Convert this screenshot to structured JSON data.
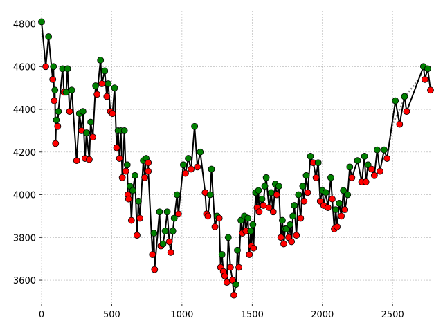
{
  "chart_data": {
    "type": "line",
    "title": "",
    "xlabel": "",
    "ylabel": "",
    "xlim": [
      0,
      2780
    ],
    "ylim": [
      3490,
      4860
    ],
    "x_ticks": [
      0,
      500,
      1000,
      1500,
      2000,
      2500
    ],
    "y_ticks": [
      3600,
      3800,
      4000,
      4200,
      4400,
      4600,
      4800
    ],
    "x_tick_labels": [
      "0",
      "500",
      "1000",
      "1500",
      "2000",
      "2500"
    ],
    "y_tick_labels": [
      "3600",
      "3800",
      "4000",
      "4200",
      "4400",
      "4600",
      "4800"
    ],
    "grid": true,
    "legend": "none",
    "colors": {
      "line": "#000000",
      "trend": "#7f7f7f",
      "high_marker": "#008000",
      "low_marker": "#ff0000",
      "grid": "#b0b0b0"
    },
    "series": [
      {
        "values": [
          [
            0,
            4810
          ],
          [
            30,
            4600
          ],
          [
            50,
            4740
          ],
          [
            80,
            4540
          ],
          [
            85,
            4600
          ],
          [
            90,
            4440
          ],
          [
            95,
            4490
          ],
          [
            100,
            4240
          ],
          [
            105,
            4350
          ],
          [
            115,
            4320
          ],
          [
            120,
            4390
          ],
          [
            150,
            4590
          ],
          [
            160,
            4480
          ],
          [
            175,
            4480
          ],
          [
            185,
            4590
          ],
          [
            200,
            4390
          ],
          [
            215,
            4490
          ],
          [
            250,
            4160
          ],
          [
            270,
            4380
          ],
          [
            285,
            4300
          ],
          [
            295,
            4390
          ],
          [
            310,
            4170
          ],
          [
            320,
            4290
          ],
          [
            340,
            4165
          ],
          [
            350,
            4340
          ],
          [
            365,
            4270
          ],
          [
            385,
            4510
          ],
          [
            395,
            4470
          ],
          [
            420,
            4630
          ],
          [
            430,
            4520
          ],
          [
            450,
            4580
          ],
          [
            465,
            4460
          ],
          [
            475,
            4520
          ],
          [
            490,
            4390
          ],
          [
            505,
            4380
          ],
          [
            520,
            4500
          ],
          [
            535,
            4220
          ],
          [
            545,
            4300
          ],
          [
            555,
            4170
          ],
          [
            565,
            4300
          ],
          [
            575,
            4080
          ],
          [
            590,
            4300
          ],
          [
            600,
            4110
          ],
          [
            610,
            4140
          ],
          [
            615,
            4000
          ],
          [
            620,
            3980
          ],
          [
            630,
            4040
          ],
          [
            640,
            3880
          ],
          [
            650,
            4020
          ],
          [
            665,
            4090
          ],
          [
            680,
            3810
          ],
          [
            690,
            3970
          ],
          [
            700,
            3890
          ],
          [
            725,
            4160
          ],
          [
            735,
            4080
          ],
          [
            745,
            4170
          ],
          [
            760,
            4150
          ],
          [
            760,
            4110
          ],
          [
            790,
            3720
          ],
          [
            800,
            3820
          ],
          [
            805,
            3650
          ],
          [
            840,
            3920
          ],
          [
            850,
            3760
          ],
          [
            865,
            3770
          ],
          [
            880,
            3830
          ],
          [
            895,
            3920
          ],
          [
            910,
            3780
          ],
          [
            920,
            3730
          ],
          [
            935,
            3830
          ],
          [
            945,
            3890
          ],
          [
            965,
            4000
          ],
          [
            975,
            3910
          ],
          [
            1010,
            4140
          ],
          [
            1025,
            4100
          ],
          [
            1045,
            4170
          ],
          [
            1065,
            4120
          ],
          [
            1090,
            4320
          ],
          [
            1110,
            4130
          ],
          [
            1130,
            4200
          ],
          [
            1165,
            4010
          ],
          [
            1175,
            3910
          ],
          [
            1185,
            3900
          ],
          [
            1200,
            4000
          ],
          [
            1210,
            4120
          ],
          [
            1235,
            3850
          ],
          [
            1250,
            3900
          ],
          [
            1265,
            3890
          ],
          [
            1275,
            3660
          ],
          [
            1285,
            3720
          ],
          [
            1295,
            3640
          ],
          [
            1305,
            3620
          ],
          [
            1320,
            3590
          ],
          [
            1330,
            3800
          ],
          [
            1345,
            3660
          ],
          [
            1360,
            3600
          ],
          [
            1370,
            3530
          ],
          [
            1385,
            3580
          ],
          [
            1395,
            3740
          ],
          [
            1405,
            3660
          ],
          [
            1420,
            3880
          ],
          [
            1430,
            3820
          ],
          [
            1445,
            3900
          ],
          [
            1455,
            3830
          ],
          [
            1470,
            3890
          ],
          [
            1480,
            3720
          ],
          [
            1490,
            3830
          ],
          [
            1495,
            3760
          ],
          [
            1505,
            3860
          ],
          [
            1510,
            3750
          ],
          [
            1525,
            4010
          ],
          [
            1535,
            3940
          ],
          [
            1545,
            4020
          ],
          [
            1550,
            3920
          ],
          [
            1570,
            3980
          ],
          [
            1580,
            3950
          ],
          [
            1590,
            4040
          ],
          [
            1600,
            4080
          ],
          [
            1620,
            3940
          ],
          [
            1635,
            4010
          ],
          [
            1650,
            3920
          ],
          [
            1665,
            4050
          ],
          [
            1675,
            4000
          ],
          [
            1690,
            4040
          ],
          [
            1705,
            3800
          ],
          [
            1715,
            3880
          ],
          [
            1725,
            3770
          ],
          [
            1735,
            3840
          ],
          [
            1745,
            3840
          ],
          [
            1760,
            3800
          ],
          [
            1770,
            3860
          ],
          [
            1780,
            3780
          ],
          [
            1790,
            3900
          ],
          [
            1800,
            3950
          ],
          [
            1815,
            3810
          ],
          [
            1830,
            4000
          ],
          [
            1845,
            3890
          ],
          [
            1860,
            4040
          ],
          [
            1870,
            3970
          ],
          [
            1885,
            4090
          ],
          [
            1895,
            4010
          ],
          [
            1915,
            4180
          ],
          [
            1935,
            4150
          ],
          [
            1955,
            4080
          ],
          [
            1970,
            4150
          ],
          [
            1985,
            3970
          ],
          [
            2000,
            4020
          ],
          [
            2010,
            3950
          ],
          [
            2025,
            4010
          ],
          [
            2040,
            3940
          ],
          [
            2060,
            4080
          ],
          [
            2070,
            3980
          ],
          [
            2085,
            3840
          ],
          [
            2095,
            3930
          ],
          [
            2105,
            3850
          ],
          [
            2120,
            3960
          ],
          [
            2135,
            3900
          ],
          [
            2150,
            4020
          ],
          [
            2160,
            3930
          ],
          [
            2180,
            4000
          ],
          [
            2195,
            4130
          ],
          [
            2210,
            4080
          ],
          [
            2250,
            4160
          ],
          [
            2280,
            4060
          ],
          [
            2300,
            4180
          ],
          [
            2310,
            4060
          ],
          [
            2325,
            4140
          ],
          [
            2350,
            4120
          ],
          [
            2370,
            4090
          ],
          [
            2390,
            4210
          ],
          [
            2410,
            4110
          ],
          [
            2440,
            4210
          ],
          [
            2460,
            4170
          ],
          [
            2520,
            4440
          ],
          [
            2550,
            4330
          ],
          [
            2585,
            4460
          ],
          [
            2600,
            4390
          ],
          [
            2720,
            4600
          ],
          [
            2730,
            4540
          ],
          [
            2750,
            4590
          ],
          [
            2770,
            4490
          ]
        ]
      },
      {
        "values": [
          [
            2470,
            4210
          ],
          [
            2500,
            4330
          ],
          [
            2550,
            4400
          ],
          [
            2600,
            4470
          ],
          [
            2650,
            4510
          ],
          [
            2700,
            4560
          ],
          [
            2750,
            4560
          ]
        ]
      }
    ]
  }
}
